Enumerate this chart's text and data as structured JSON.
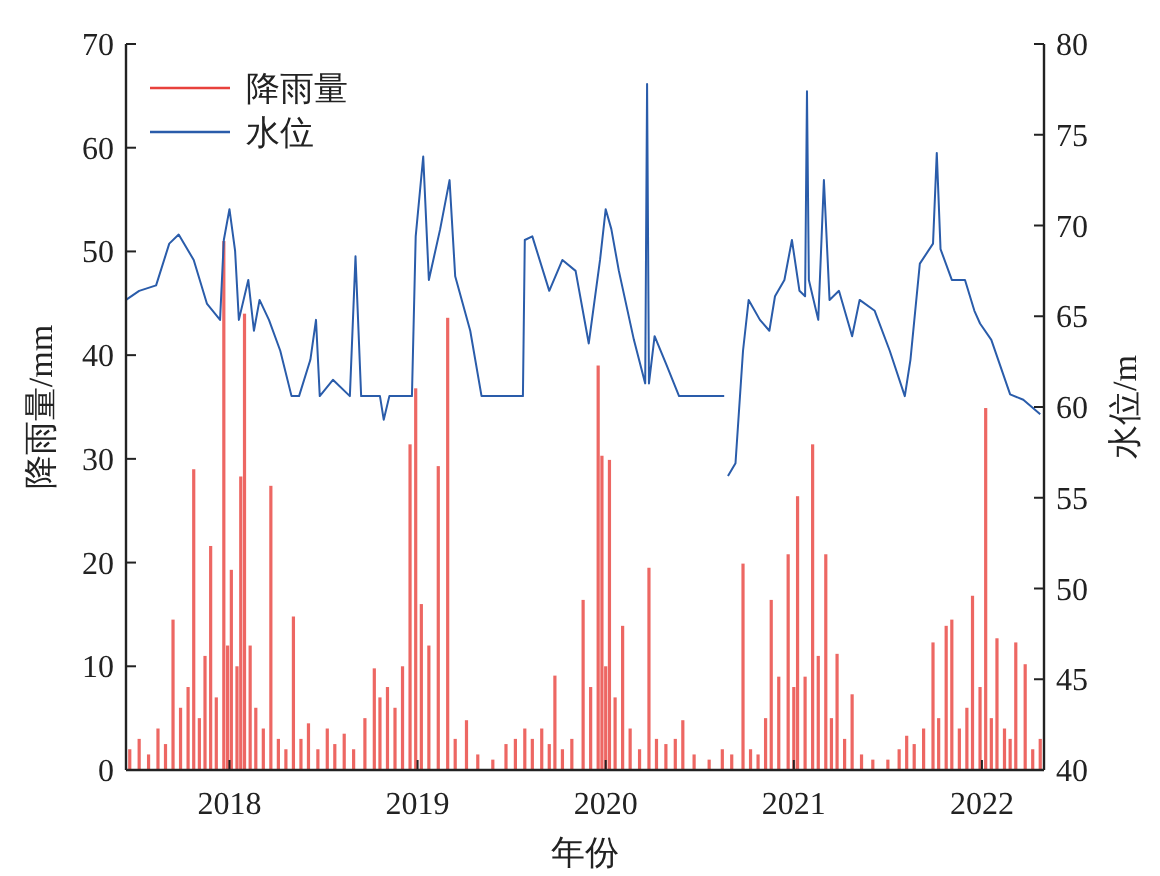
{
  "chart_data": {
    "type": "bar",
    "xlabel": "年份",
    "ylabel": "降雨量/mm",
    "y2label": "水位/m",
    "legend": "top left",
    "xlim": [
      2017.45,
      2022.33
    ],
    "xticks": [
      2018,
      2019,
      2020,
      2021,
      2022
    ],
    "ylim": [
      0,
      70
    ],
    "yticks": [
      0,
      10,
      20,
      30,
      40,
      50,
      60,
      70
    ],
    "y2lim": [
      40,
      80
    ],
    "y2ticks": [
      40,
      45,
      50,
      55,
      60,
      65,
      70,
      75,
      80
    ],
    "series": [
      {
        "name": "降雨量",
        "color": "#e8413c",
        "x": [
          2017.47,
          2017.52,
          2017.57,
          2017.62,
          2017.66,
          2017.7,
          2017.74,
          2017.78,
          2017.81,
          2017.84,
          2017.87,
          2017.9,
          2017.93,
          2017.97,
          2017.99,
          2018.01,
          2018.04,
          2018.06,
          2018.08,
          2018.11,
          2018.14,
          2018.18,
          2018.22,
          2018.26,
          2018.3,
          2018.34,
          2018.38,
          2018.42,
          2018.47,
          2018.52,
          2018.56,
          2018.61,
          2018.66,
          2018.72,
          2018.77,
          2018.8,
          2018.84,
          2018.88,
          2018.92,
          2018.96,
          2018.99,
          2019.02,
          2019.06,
          2019.11,
          2019.16,
          2019.2,
          2019.26,
          2019.32,
          2019.4,
          2019.47,
          2019.52,
          2019.57,
          2019.61,
          2019.66,
          2019.7,
          2019.73,
          2019.77,
          2019.82,
          2019.88,
          2019.92,
          2019.96,
          2019.98,
          2020.0,
          2020.02,
          2020.05,
          2020.09,
          2020.13,
          2020.18,
          2020.23,
          2020.27,
          2020.32,
          2020.37,
          2020.41,
          2020.47,
          2020.55,
          2020.62,
          2020.67,
          2020.73,
          2020.77,
          2020.81,
          2020.85,
          2020.88,
          2020.92,
          2020.97,
          2021.0,
          2021.02,
          2021.06,
          2021.1,
          2021.13,
          2021.17,
          2021.2,
          2021.23,
          2021.27,
          2021.31,
          2021.36,
          2021.42,
          2021.5,
          2021.56,
          2021.6,
          2021.64,
          2021.69,
          2021.74,
          2021.77,
          2021.81,
          2021.84,
          2021.88,
          2021.92,
          2021.95,
          2021.99,
          2022.02,
          2022.05,
          2022.08,
          2022.12,
          2022.15,
          2022.18,
          2022.23,
          2022.27,
          2022.31
        ],
        "values": [
          2,
          3,
          1.5,
          4,
          2.5,
          14.5,
          6,
          8,
          29,
          5,
          11,
          21.6,
          7,
          51,
          12,
          19.3,
          10,
          28.3,
          44,
          12,
          6,
          4,
          27.4,
          3,
          2,
          14.8,
          3,
          4.5,
          2,
          4,
          2.5,
          3.5,
          2,
          5,
          9.8,
          7,
          8,
          6,
          10,
          31.4,
          36.8,
          16,
          12,
          29.3,
          43.6,
          3,
          4.8,
          1.5,
          1,
          2.5,
          3,
          4,
          3,
          4,
          2.5,
          9.1,
          2,
          3,
          16.4,
          8,
          39,
          30.3,
          10,
          29.9,
          7,
          13.9,
          4,
          2,
          19.5,
          3,
          2.5,
          3,
          4.8,
          1.5,
          1,
          2,
          1.5,
          19.9,
          2,
          1.5,
          5,
          16.4,
          9,
          20.8,
          8,
          26.4,
          9,
          31.4,
          11,
          20.8,
          5,
          11.2,
          3,
          7.3,
          1.5,
          1,
          1,
          2,
          3.3,
          2.5,
          4,
          12.3,
          5,
          13.9,
          14.5,
          4,
          6,
          16.8,
          8,
          34.9,
          5,
          12.7,
          4,
          3,
          12.3,
          10.2,
          2,
          3
        ]
      },
      {
        "name": "水位",
        "type": "line",
        "axis": "y2",
        "color": "#2a5caa",
        "x": [
          2017.45,
          2017.52,
          2017.61,
          2017.68,
          2017.73,
          2017.81,
          2017.88,
          2017.95,
          2017.97,
          2018.0,
          2018.03,
          2018.05,
          2018.1,
          2018.13,
          2018.16,
          2018.21,
          2018.27,
          2018.33,
          2018.37,
          2018.43,
          2018.46,
          2018.48,
          2018.55,
          2018.64,
          2018.67,
          2018.7,
          2018.8,
          2018.82,
          2018.85,
          2018.97,
          2018.99,
          2019.03,
          2019.06,
          2019.12,
          2019.17,
          2019.2,
          2019.28,
          2019.34,
          2019.56,
          2019.57,
          2019.61,
          2019.7,
          2019.77,
          2019.84,
          2019.91,
          2019.97,
          2020.0,
          2020.03,
          2020.07,
          2020.15,
          2020.21,
          2020.22,
          2020.23,
          2020.26,
          2020.32,
          2020.39,
          2020.63,
          2020.64,
          2020.65,
          2020.69,
          2020.73,
          2020.76,
          2020.82,
          2020.87,
          2020.9,
          2020.95,
          2020.99,
          2021.03,
          2021.06,
          2021.07,
          2021.08,
          2021.13,
          2021.16,
          2021.19,
          2021.24,
          2021.31,
          2021.35,
          2021.43,
          2021.51,
          2021.59,
          2021.62,
          2021.67,
          2021.74,
          2021.76,
          2021.78,
          2021.84,
          2021.91,
          2021.96,
          2021.99,
          2022.05,
          2022.15,
          2022.22,
          2022.31
        ],
        "values": [
          65.9,
          66.4,
          66.7,
          69.0,
          69.5,
          68.1,
          65.7,
          64.8,
          69.2,
          70.9,
          68.6,
          64.8,
          67.0,
          64.2,
          65.9,
          64.8,
          63.1,
          60.6,
          60.6,
          62.6,
          64.8,
          60.6,
          61.5,
          60.6,
          68.3,
          60.6,
          60.6,
          59.3,
          60.6,
          60.6,
          69.4,
          73.8,
          67.0,
          69.8,
          72.5,
          67.2,
          64.2,
          60.6,
          60.6,
          69.2,
          69.4,
          66.4,
          68.1,
          67.5,
          63.5,
          68.1,
          70.9,
          69.8,
          67.5,
          63.7,
          61.3,
          77.8,
          61.3,
          63.9,
          62.4,
          60.6,
          60.6,
          null,
          56.2,
          56.9,
          63.1,
          65.9,
          64.8,
          64.2,
          66.1,
          67.0,
          69.2,
          66.4,
          66.1,
          77.4,
          67.0,
          64.8,
          72.5,
          65.9,
          66.4,
          63.9,
          65.9,
          65.3,
          63.1,
          60.6,
          62.6,
          67.9,
          69.0,
          74.0,
          68.7,
          67.0,
          67.0,
          65.3,
          64.6,
          63.7,
          60.7,
          60.4,
          59.6
        ]
      }
    ]
  }
}
